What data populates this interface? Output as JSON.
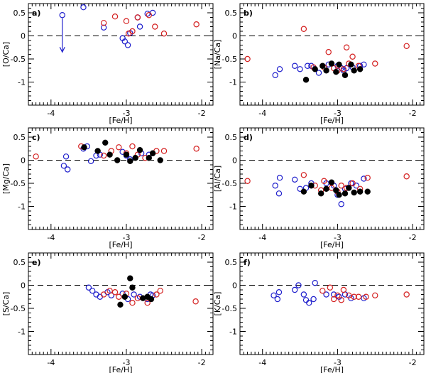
{
  "chart_data": [
    {
      "type": "scatter",
      "label": "a)",
      "xlabel": "[Fe/H]",
      "ylabel": "[O/Ca]",
      "xlim": [
        -4.3,
        -1.85
      ],
      "ylim": [
        -1.5,
        0.7
      ],
      "xticks": [
        "-4",
        "-3",
        "-2"
      ],
      "yticks": [
        "-1",
        "-0.5",
        "0",
        "0.5"
      ],
      "series": [
        {
          "name": "blue open",
          "marker": "open",
          "color": "#1f1fcc",
          "points": [
            [
              -3.85,
              0.45
            ],
            [
              -3.57,
              0.62
            ],
            [
              -3.3,
              0.18
            ],
            [
              -3.05,
              -0.05
            ],
            [
              -3.02,
              -0.12
            ],
            [
              -2.98,
              -0.2
            ],
            [
              -2.95,
              0.06
            ],
            [
              -2.85,
              0.4
            ],
            [
              -2.82,
              0.2
            ],
            [
              -2.72,
              0.48
            ],
            [
              -2.65,
              0.5
            ]
          ]
        },
        {
          "name": "red open",
          "marker": "open",
          "color": "#d42020",
          "points": [
            [
              -3.3,
              0.28
            ],
            [
              -3.15,
              0.42
            ],
            [
              -3.0,
              0.32
            ],
            [
              -2.97,
              0.05
            ],
            [
              -2.92,
              0.1
            ],
            [
              -2.85,
              0.4
            ],
            [
              -2.7,
              0.45
            ],
            [
              -2.62,
              0.2
            ],
            [
              -2.5,
              0.05
            ],
            [
              -2.07,
              0.25
            ]
          ]
        },
        {
          "name": "black filled",
          "marker": "filled",
          "color": "#000000",
          "points": []
        }
      ],
      "annotations": [
        {
          "type": "upper-limit-arrow",
          "x": -3.85,
          "y_from": 0.38,
          "y_to": -0.35,
          "color": "#1f1fcc"
        }
      ]
    },
    {
      "type": "scatter",
      "label": "b)",
      "xlabel": "[Fe/H]",
      "ylabel": "[Na/Ca]",
      "xlim": [
        -4.3,
        -1.85
      ],
      "ylim": [
        -1.5,
        0.7
      ],
      "xticks": [
        "-4",
        "-3",
        "-2"
      ],
      "yticks": [
        "-1",
        "-0.5",
        "0",
        "0.5"
      ],
      "series": [
        {
          "name": "blue open",
          "marker": "open",
          "color": "#1f1fcc",
          "points": [
            [
              -3.83,
              -0.85
            ],
            [
              -3.77,
              -0.72
            ],
            [
              -3.57,
              -0.65
            ],
            [
              -3.5,
              -0.72
            ],
            [
              -3.4,
              -0.65
            ],
            [
              -3.35,
              -0.65
            ],
            [
              -3.25,
              -0.8
            ],
            [
              -3.12,
              -0.62
            ],
            [
              -3.0,
              -0.65
            ],
            [
              -2.95,
              -0.7
            ],
            [
              -2.92,
              -0.75
            ],
            [
              -2.88,
              -0.7
            ],
            [
              -2.8,
              -0.68
            ],
            [
              -2.7,
              -0.65
            ],
            [
              -2.65,
              -0.62
            ]
          ]
        },
        {
          "name": "red open",
          "marker": "open",
          "color": "#d42020",
          "points": [
            [
              -4.2,
              -0.5
            ],
            [
              -3.32,
              -0.68
            ],
            [
              -3.18,
              -0.68
            ],
            [
              -3.12,
              -0.35
            ],
            [
              -3.05,
              -0.7
            ],
            [
              -3.0,
              -0.75
            ],
            [
              -2.92,
              -0.72
            ],
            [
              -2.88,
              -0.25
            ],
            [
              -2.85,
              -0.6
            ],
            [
              -2.8,
              -0.45
            ],
            [
              -2.72,
              -0.65
            ],
            [
              -2.5,
              -0.6
            ],
            [
              -3.45,
              0.15
            ],
            [
              -2.08,
              -0.22
            ]
          ]
        },
        {
          "name": "black filled",
          "marker": "filled",
          "color": "#000000",
          "points": [
            [
              -3.42,
              -0.95
            ],
            [
              -3.3,
              -0.72
            ],
            [
              -3.15,
              -0.75
            ],
            [
              -3.08,
              -0.6
            ],
            [
              -3.02,
              -0.78
            ],
            [
              -2.98,
              -0.62
            ],
            [
              -2.9,
              -0.85
            ],
            [
              -2.82,
              -0.62
            ],
            [
              -2.78,
              -0.75
            ],
            [
              -2.7,
              -0.72
            ],
            [
              -3.2,
              -0.65
            ]
          ]
        }
      ]
    },
    {
      "type": "scatter",
      "label": "c)",
      "xlabel": "[Fe/H]",
      "ylabel": "[Mg/Ca]",
      "xlim": [
        -4.3,
        -1.85
      ],
      "ylim": [
        -1.5,
        0.7
      ],
      "xticks": [
        "-4",
        "-3",
        "-2"
      ],
      "yticks": [
        "-1",
        "-0.5",
        "0",
        "0.5"
      ],
      "series": [
        {
          "name": "blue open",
          "marker": "open",
          "color": "#1f1fcc",
          "points": [
            [
              -3.83,
              -0.12
            ],
            [
              -3.78,
              -0.2
            ],
            [
              -3.8,
              0.08
            ],
            [
              -3.57,
              0.25
            ],
            [
              -3.52,
              0.3
            ],
            [
              -3.47,
              -0.02
            ],
            [
              -3.4,
              0.1
            ],
            [
              -3.35,
              0.12
            ],
            [
              -3.05,
              0.18
            ],
            [
              -3.0,
              0.1
            ],
            [
              -2.95,
              0.02
            ],
            [
              -2.8,
              0.15
            ],
            [
              -2.7,
              0.12
            ]
          ]
        },
        {
          "name": "red open",
          "marker": "open",
          "color": "#d42020",
          "points": [
            [
              -4.2,
              0.08
            ],
            [
              -3.3,
              0.1
            ],
            [
              -3.2,
              0.2
            ],
            [
              -3.1,
              0.28
            ],
            [
              -3.0,
              0.15
            ],
            [
              -2.92,
              0.3
            ],
            [
              -2.85,
              0.12
            ],
            [
              -2.75,
              0.05
            ],
            [
              -2.6,
              0.2
            ],
            [
              -2.5,
              0.2
            ],
            [
              -2.07,
              0.25
            ],
            [
              -3.6,
              0.3
            ]
          ]
        },
        {
          "name": "black filled",
          "marker": "filled",
          "color": "#000000",
          "points": [
            [
              -3.56,
              0.28
            ],
            [
              -3.38,
              0.2
            ],
            [
              -3.28,
              0.38
            ],
            [
              -3.22,
              0.12
            ],
            [
              -3.12,
              0.0
            ],
            [
              -3.0,
              0.12
            ],
            [
              -2.95,
              -0.02
            ],
            [
              -2.88,
              0.05
            ],
            [
              -2.82,
              0.22
            ],
            [
              -2.7,
              0.05
            ],
            [
              -2.65,
              0.15
            ],
            [
              -2.55,
              0.0
            ]
          ]
        }
      ]
    },
    {
      "type": "scatter",
      "label": "d)",
      "xlabel": "[Fe/H]",
      "ylabel": "[Al/Ca]",
      "xlim": [
        -4.3,
        -1.85
      ],
      "ylim": [
        -1.5,
        0.7
      ],
      "xticks": [
        "-4",
        "-3",
        "-2"
      ],
      "yticks": [
        "-1",
        "-0.5",
        "0",
        "0.5"
      ],
      "series": [
        {
          "name": "blue open",
          "marker": "open",
          "color": "#1f1fcc",
          "points": [
            [
              -3.83,
              -0.55
            ],
            [
              -3.78,
              -0.72
            ],
            [
              -3.77,
              -0.38
            ],
            [
              -3.57,
              -0.42
            ],
            [
              -3.5,
              -0.62
            ],
            [
              -3.42,
              -0.6
            ],
            [
              -3.35,
              -0.5
            ],
            [
              -3.15,
              -0.5
            ],
            [
              -3.05,
              -0.55
            ],
            [
              -3.0,
              -0.75
            ],
            [
              -2.95,
              -0.95
            ],
            [
              -2.9,
              -0.62
            ],
            [
              -2.82,
              -0.5
            ],
            [
              -2.75,
              -0.55
            ],
            [
              -2.65,
              -0.4
            ]
          ]
        },
        {
          "name": "red open",
          "marker": "open",
          "color": "#d42020",
          "points": [
            [
              -4.2,
              -0.45
            ],
            [
              -3.3,
              -0.55
            ],
            [
              -3.22,
              -0.65
            ],
            [
              -3.18,
              -0.45
            ],
            [
              -3.08,
              -0.6
            ],
            [
              -3.0,
              -0.68
            ],
            [
              -2.95,
              -0.55
            ],
            [
              -2.88,
              -0.6
            ],
            [
              -2.8,
              -0.5
            ],
            [
              -2.7,
              -0.62
            ],
            [
              -2.6,
              -0.38
            ],
            [
              -3.45,
              -0.32
            ],
            [
              -2.08,
              -0.35
            ]
          ]
        },
        {
          "name": "black filled",
          "marker": "filled",
          "color": "#000000",
          "points": [
            [
              -3.45,
              -0.68
            ],
            [
              -3.35,
              -0.55
            ],
            [
              -3.22,
              -0.72
            ],
            [
              -3.15,
              -0.62
            ],
            [
              -3.08,
              -0.48
            ],
            [
              -3.02,
              -0.65
            ],
            [
              -2.98,
              -0.75
            ],
            [
              -2.9,
              -0.72
            ],
            [
              -2.85,
              -0.6
            ],
            [
              -2.78,
              -0.7
            ],
            [
              -2.7,
              -0.68
            ],
            [
              -2.6,
              -0.68
            ]
          ]
        }
      ]
    },
    {
      "type": "scatter",
      "label": "e)",
      "xlabel": "[Fe/H]",
      "ylabel": "[S/Ca]",
      "xlim": [
        -4.3,
        -1.85
      ],
      "ylim": [
        -1.5,
        0.7
      ],
      "xticks": [
        "-4",
        "-3",
        "-2"
      ],
      "yticks": [
        "-1",
        "-0.5",
        "0",
        "0.5"
      ],
      "series": [
        {
          "name": "blue open",
          "marker": "open",
          "color": "#1f1fcc",
          "points": [
            [
              -3.5,
              -0.05
            ],
            [
              -3.45,
              -0.12
            ],
            [
              -3.4,
              -0.2
            ],
            [
              -3.35,
              -0.25
            ],
            [
              -3.25,
              -0.15
            ],
            [
              -3.2,
              -0.22
            ],
            [
              -3.05,
              -0.18
            ],
            [
              -2.98,
              -0.3
            ],
            [
              -2.9,
              -0.2
            ],
            [
              -2.82,
              -0.25
            ],
            [
              -2.72,
              -0.3
            ],
            [
              -2.68,
              -0.2
            ],
            [
              -2.65,
              -0.22
            ]
          ]
        },
        {
          "name": "red open",
          "marker": "open",
          "color": "#d42020",
          "points": [
            [
              -3.3,
              -0.2
            ],
            [
              -3.22,
              -0.12
            ],
            [
              -3.1,
              -0.25
            ],
            [
              -3.0,
              -0.18
            ],
            [
              -2.92,
              -0.38
            ],
            [
              -2.85,
              -0.28
            ],
            [
              -2.72,
              -0.38
            ],
            [
              -2.6,
              -0.2
            ],
            [
              -2.55,
              -0.12
            ],
            [
              -2.08,
              -0.35
            ],
            [
              -3.15,
              -0.15
            ]
          ]
        },
        {
          "name": "black filled",
          "marker": "filled",
          "color": "#000000",
          "points": [
            [
              -3.08,
              -0.42
            ],
            [
              -3.02,
              -0.25
            ],
            [
              -2.95,
              0.15
            ],
            [
              -2.92,
              -0.05
            ],
            [
              -2.78,
              -0.28
            ],
            [
              -2.72,
              -0.25
            ],
            [
              -2.67,
              -0.3
            ]
          ]
        }
      ]
    },
    {
      "type": "scatter",
      "label": "f)",
      "xlabel": "[Fe/H]",
      "ylabel": "[K/Ca]",
      "xlim": [
        -4.3,
        -1.85
      ],
      "ylim": [
        -1.5,
        0.7
      ],
      "xticks": [
        "-4",
        "-3",
        "-2"
      ],
      "yticks": [
        "-1",
        "-0.5",
        "0",
        "0.5"
      ],
      "series": [
        {
          "name": "blue open",
          "marker": "open",
          "color": "#1f1fcc",
          "points": [
            [
              -3.85,
              -0.22
            ],
            [
              -3.8,
              -0.3
            ],
            [
              -3.78,
              -0.15
            ],
            [
              -3.57,
              -0.1
            ],
            [
              -3.52,
              0.0
            ],
            [
              -3.45,
              -0.2
            ],
            [
              -3.42,
              -0.32
            ],
            [
              -3.38,
              -0.38
            ],
            [
              -3.32,
              -0.3
            ],
            [
              -3.3,
              0.05
            ],
            [
              -3.15,
              -0.2
            ],
            [
              -3.05,
              -0.2
            ],
            [
              -2.98,
              -0.25
            ],
            [
              -2.9,
              -0.2
            ],
            [
              -2.82,
              -0.28
            ],
            [
              -2.65,
              -0.28
            ]
          ]
        },
        {
          "name": "red open",
          "marker": "open",
          "color": "#d42020",
          "points": [
            [
              -3.2,
              -0.12
            ],
            [
              -3.1,
              -0.05
            ],
            [
              -3.0,
              -0.22
            ],
            [
              -2.95,
              -0.32
            ],
            [
              -2.92,
              -0.1
            ],
            [
              -2.85,
              -0.22
            ],
            [
              -2.78,
              -0.25
            ],
            [
              -2.72,
              -0.25
            ],
            [
              -2.62,
              -0.25
            ],
            [
              -2.5,
              -0.22
            ],
            [
              -2.08,
              -0.2
            ],
            [
              -3.05,
              -0.3
            ]
          ]
        },
        {
          "name": "black filled",
          "marker": "filled",
          "color": "#000000",
          "points": []
        }
      ]
    }
  ]
}
